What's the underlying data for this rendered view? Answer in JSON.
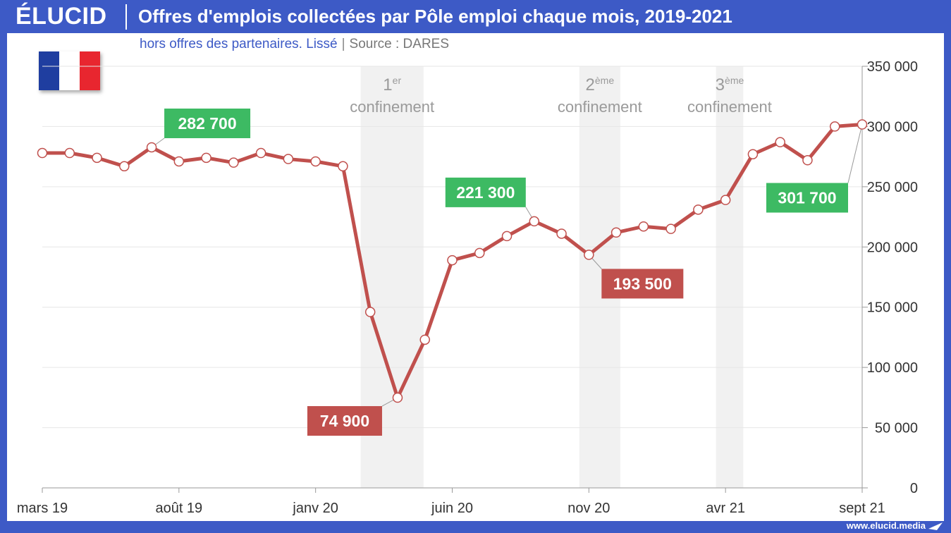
{
  "header": {
    "logo_text": "ÉLUCID",
    "title": "Offres d'emplois collectées par Pôle emploi chaque mois, 2019-2021"
  },
  "subtitle": {
    "main": "hors offres des partenaires. Lissé",
    "separator": "|",
    "source": "Source : DARES"
  },
  "footer": {
    "url": "www.elucid.media"
  },
  "flag_colors": [
    "#1f3ea0",
    "#ffffff",
    "#e8262f"
  ],
  "colors": {
    "line": "#c0504d",
    "label_high": "#3dba63",
    "label_low": "#c0504d",
    "band": "#f1f1f1",
    "grid": "#e6e6e6",
    "axis_text": "#333333",
    "band_text": "#9a9a9a"
  },
  "chart_data": {
    "type": "line",
    "title": "Offres d'emplois collectées par Pôle emploi chaque mois, 2019-2021",
    "x": [
      "2019-03",
      "2019-04",
      "2019-05",
      "2019-06",
      "2019-07",
      "2019-08",
      "2019-09",
      "2019-10",
      "2019-11",
      "2019-12",
      "2020-01",
      "2020-02",
      "2020-03",
      "2020-04",
      "2020-05",
      "2020-06",
      "2020-07",
      "2020-08",
      "2020-09",
      "2020-10",
      "2020-11",
      "2020-12",
      "2021-01",
      "2021-02",
      "2021-03",
      "2021-04",
      "2021-05",
      "2021-06",
      "2021-07",
      "2021-08",
      "2021-09"
    ],
    "series": [
      {
        "values": [
          278000,
          278000,
          274000,
          267000,
          282700,
          271000,
          274000,
          270000,
          278000,
          273000,
          271000,
          267000,
          146000,
          74900,
          123000,
          189000,
          195000,
          209000,
          221300,
          211000,
          193500,
          212000,
          217000,
          215000,
          231000,
          239000,
          277000,
          287000,
          272000,
          300000,
          301700
        ]
      }
    ],
    "ylim": [
      0,
      350000
    ],
    "yticks": [
      0,
      50000,
      100000,
      150000,
      200000,
      250000,
      300000,
      350000
    ],
    "ytick_labels": [
      "0",
      "50 000",
      "100 000",
      "150 000",
      "200 000",
      "250 000",
      "300 000",
      "350 000"
    ],
    "xtick_positions": [
      0,
      5,
      10,
      15,
      20,
      25,
      30
    ],
    "xtick_labels": [
      "mars 19",
      "août 19",
      "janv 20",
      "juin 20",
      "nov 20",
      "avr 21",
      "sept 21"
    ],
    "bands": [
      {
        "start": 11.65,
        "end": 13.95,
        "label_num": "1",
        "label_sup": "er",
        "label_text": "confinement"
      },
      {
        "start": 19.65,
        "end": 21.15,
        "label_num": "2",
        "label_sup": "ème",
        "label_text": "confinement"
      },
      {
        "start": 24.65,
        "end": 25.65,
        "label_num": "3",
        "label_sup": "ème",
        "label_text": "confinement"
      }
    ],
    "annotations": [
      {
        "index": 4,
        "text": "282 700",
        "kind": "high"
      },
      {
        "index": 13,
        "text": "74 900",
        "kind": "low"
      },
      {
        "index": 18,
        "text": "221 300",
        "kind": "high"
      },
      {
        "index": 20,
        "text": "193 500",
        "kind": "low"
      },
      {
        "index": 30,
        "text": "301 700",
        "kind": "high"
      }
    ],
    "grid": true,
    "y_axis_side": "right"
  }
}
